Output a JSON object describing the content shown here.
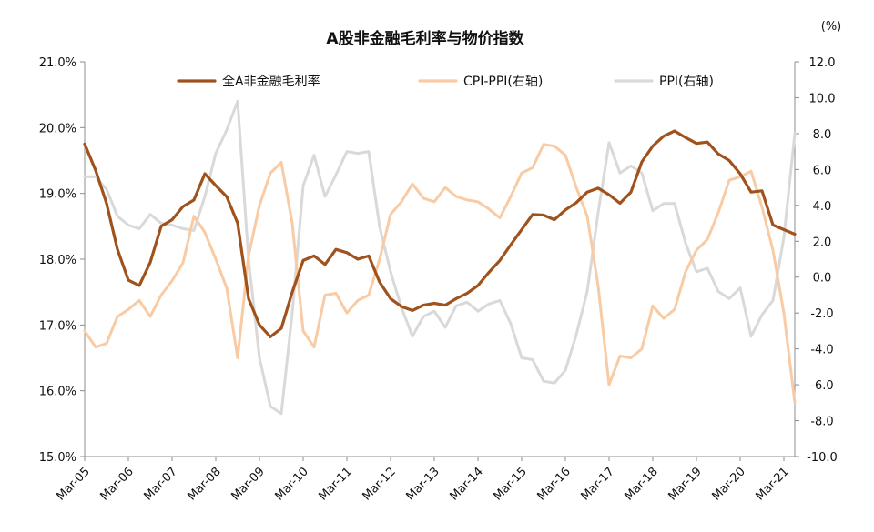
{
  "chart_data": {
    "type": "line",
    "title": "A股非金融毛利率与物价指数",
    "right_unit": "(%)",
    "y_left": {
      "min": 15.0,
      "max": 21.0,
      "step": 1.0,
      "ticks": [
        "15.0%",
        "16.0%",
        "17.0%",
        "18.0%",
        "19.0%",
        "20.0%",
        "21.0%"
      ]
    },
    "y_right": {
      "min": -10.0,
      "max": 12.0,
      "step": 2.0,
      "ticks": [
        "-10.0",
        "-8.0",
        "-6.0",
        "-4.0",
        "-2.0",
        "0.0",
        "2.0",
        "4.0",
        "6.0",
        "8.0",
        "10.0",
        "12.0"
      ]
    },
    "x_range": [
      "2005-03",
      "2021-06"
    ],
    "x_ticks": [
      "Mar-05",
      "Mar-06",
      "Mar-07",
      "Mar-08",
      "Mar-09",
      "Mar-10",
      "Mar-11",
      "Mar-12",
      "Mar-13",
      "Mar-14",
      "Mar-15",
      "Mar-16",
      "Mar-17",
      "Mar-18",
      "Mar-19",
      "Mar-20",
      "Mar-21"
    ],
    "grid": false,
    "legend_position": "top",
    "series": [
      {
        "name": "全A非金融毛利率",
        "axis": "left",
        "color": "#A0521D",
        "points": [
          [
            "2005-03",
            19.75
          ],
          [
            "2005-06",
            19.35
          ],
          [
            "2005-09",
            18.85
          ],
          [
            "2005-12",
            18.15
          ],
          [
            "2006-03",
            17.68
          ],
          [
            "2006-06",
            17.6
          ],
          [
            "2006-09",
            17.95
          ],
          [
            "2006-12",
            18.5
          ],
          [
            "2007-03",
            18.6
          ],
          [
            "2007-06",
            18.8
          ],
          [
            "2007-09",
            18.9
          ],
          [
            "2007-12",
            19.3
          ],
          [
            "2008-03",
            19.12
          ],
          [
            "2008-06",
            18.95
          ],
          [
            "2008-09",
            18.55
          ],
          [
            "2008-12",
            17.4
          ],
          [
            "2009-03",
            17.0
          ],
          [
            "2009-06",
            16.82
          ],
          [
            "2009-09",
            16.95
          ],
          [
            "2009-12",
            17.5
          ],
          [
            "2010-03",
            17.98
          ],
          [
            "2010-06",
            18.05
          ],
          [
            "2010-09",
            17.92
          ],
          [
            "2010-12",
            18.15
          ],
          [
            "2011-03",
            18.1
          ],
          [
            "2011-06",
            18.0
          ],
          [
            "2011-09",
            18.05
          ],
          [
            "2011-12",
            17.65
          ],
          [
            "2012-03",
            17.4
          ],
          [
            "2012-06",
            17.28
          ],
          [
            "2012-09",
            17.22
          ],
          [
            "2012-12",
            17.3
          ],
          [
            "2013-03",
            17.33
          ],
          [
            "2013-06",
            17.3
          ],
          [
            "2013-09",
            17.4
          ],
          [
            "2013-12",
            17.48
          ],
          [
            "2014-03",
            17.6
          ],
          [
            "2014-06",
            17.8
          ],
          [
            "2014-09",
            17.98
          ],
          [
            "2014-12",
            18.22
          ],
          [
            "2015-03",
            18.45
          ],
          [
            "2015-06",
            18.68
          ],
          [
            "2015-09",
            18.67
          ],
          [
            "2015-12",
            18.6
          ],
          [
            "2016-03",
            18.75
          ],
          [
            "2016-06",
            18.86
          ],
          [
            "2016-09",
            19.02
          ],
          [
            "2016-12",
            19.08
          ],
          [
            "2017-03",
            18.98
          ],
          [
            "2017-06",
            18.85
          ],
          [
            "2017-09",
            19.02
          ],
          [
            "2017-12",
            19.48
          ],
          [
            "2018-03",
            19.72
          ],
          [
            "2018-06",
            19.87
          ],
          [
            "2018-09",
            19.95
          ],
          [
            "2018-12",
            19.85
          ],
          [
            "2019-03",
            19.76
          ],
          [
            "2019-06",
            19.78
          ],
          [
            "2019-09",
            19.6
          ],
          [
            "2019-12",
            19.5
          ],
          [
            "2020-03",
            19.3
          ],
          [
            "2020-06",
            19.02
          ],
          [
            "2020-09",
            19.04
          ],
          [
            "2020-12",
            18.52
          ],
          [
            "2021-03",
            18.45
          ],
          [
            "2021-06",
            18.38
          ]
        ]
      },
      {
        "name": "CPI-PPI(右轴)",
        "axis": "right",
        "color": "#F8CBA4",
        "points": [
          [
            "2005-03",
            -3.0
          ],
          [
            "2005-06",
            -3.9
          ],
          [
            "2005-09",
            -3.7
          ],
          [
            "2005-12",
            -2.2
          ],
          [
            "2006-03",
            -1.8
          ],
          [
            "2006-06",
            -1.3
          ],
          [
            "2006-09",
            -2.2
          ],
          [
            "2006-12",
            -1.0
          ],
          [
            "2007-03",
            -0.2
          ],
          [
            "2007-06",
            0.8
          ],
          [
            "2007-09",
            3.4
          ],
          [
            "2007-12",
            2.5
          ],
          [
            "2008-03",
            1.0
          ],
          [
            "2008-06",
            -0.6
          ],
          [
            "2008-09",
            -4.5
          ],
          [
            "2008-12",
            1.2
          ],
          [
            "2009-03",
            4.0
          ],
          [
            "2009-06",
            5.8
          ],
          [
            "2009-09",
            6.4
          ],
          [
            "2009-12",
            3.0
          ],
          [
            "2010-03",
            -3.0
          ],
          [
            "2010-06",
            -3.9
          ],
          [
            "2010-09",
            -1.0
          ],
          [
            "2010-12",
            -0.9
          ],
          [
            "2011-03",
            -2.0
          ],
          [
            "2011-06",
            -1.3
          ],
          [
            "2011-09",
            -1.0
          ],
          [
            "2011-12",
            1.0
          ],
          [
            "2012-03",
            3.5
          ],
          [
            "2012-06",
            4.2
          ],
          [
            "2012-09",
            5.2
          ],
          [
            "2012-12",
            4.4
          ],
          [
            "2013-03",
            4.2
          ],
          [
            "2013-06",
            5.0
          ],
          [
            "2013-09",
            4.5
          ],
          [
            "2013-12",
            4.3
          ],
          [
            "2014-03",
            4.2
          ],
          [
            "2014-06",
            3.8
          ],
          [
            "2014-09",
            3.3
          ],
          [
            "2014-12",
            4.5
          ],
          [
            "2015-03",
            5.8
          ],
          [
            "2015-06",
            6.1
          ],
          [
            "2015-09",
            7.4
          ],
          [
            "2015-12",
            7.3
          ],
          [
            "2016-03",
            6.8
          ],
          [
            "2016-06",
            5.0
          ],
          [
            "2016-09",
            3.4
          ],
          [
            "2016-12",
            -0.5
          ],
          [
            "2017-03",
            -6.0
          ],
          [
            "2017-06",
            -4.4
          ],
          [
            "2017-09",
            -4.5
          ],
          [
            "2017-12",
            -4.0
          ],
          [
            "2018-03",
            -1.6
          ],
          [
            "2018-06",
            -2.3
          ],
          [
            "2018-09",
            -1.8
          ],
          [
            "2018-12",
            0.3
          ],
          [
            "2019-03",
            1.5
          ],
          [
            "2019-06",
            2.1
          ],
          [
            "2019-09",
            3.6
          ],
          [
            "2019-12",
            5.4
          ],
          [
            "2020-03",
            5.6
          ],
          [
            "2020-06",
            5.9
          ],
          [
            "2020-09",
            3.9
          ],
          [
            "2020-12",
            1.5
          ],
          [
            "2021-03",
            -2.0
          ],
          [
            "2021-06",
            -7.0
          ]
        ]
      },
      {
        "name": "PPI(右轴)",
        "axis": "right",
        "color": "#D9D9D9",
        "points": [
          [
            "2005-03",
            5.6
          ],
          [
            "2005-06",
            5.6
          ],
          [
            "2005-09",
            4.9
          ],
          [
            "2005-12",
            3.4
          ],
          [
            "2006-03",
            2.9
          ],
          [
            "2006-06",
            2.7
          ],
          [
            "2006-09",
            3.5
          ],
          [
            "2006-12",
            3.0
          ],
          [
            "2007-03",
            2.9
          ],
          [
            "2007-06",
            2.7
          ],
          [
            "2007-09",
            2.6
          ],
          [
            "2007-12",
            4.5
          ],
          [
            "2008-03",
            6.9
          ],
          [
            "2008-06",
            8.2
          ],
          [
            "2008-09",
            9.8
          ],
          [
            "2008-12",
            1.0
          ],
          [
            "2009-03",
            -4.5
          ],
          [
            "2009-06",
            -7.2
          ],
          [
            "2009-09",
            -7.6
          ],
          [
            "2009-12",
            -2.0
          ],
          [
            "2010-03",
            5.1
          ],
          [
            "2010-06",
            6.8
          ],
          [
            "2010-09",
            4.5
          ],
          [
            "2010-12",
            5.7
          ],
          [
            "2011-03",
            7.0
          ],
          [
            "2011-06",
            6.9
          ],
          [
            "2011-09",
            7.0
          ],
          [
            "2011-12",
            2.8
          ],
          [
            "2012-03",
            0.3
          ],
          [
            "2012-06",
            -1.7
          ],
          [
            "2012-09",
            -3.3
          ],
          [
            "2012-12",
            -2.2
          ],
          [
            "2013-03",
            -1.9
          ],
          [
            "2013-06",
            -2.8
          ],
          [
            "2013-09",
            -1.6
          ],
          [
            "2013-12",
            -1.4
          ],
          [
            "2014-03",
            -1.9
          ],
          [
            "2014-06",
            -1.5
          ],
          [
            "2014-09",
            -1.3
          ],
          [
            "2014-12",
            -2.6
          ],
          [
            "2015-03",
            -4.5
          ],
          [
            "2015-06",
            -4.6
          ],
          [
            "2015-09",
            -5.8
          ],
          [
            "2015-12",
            -5.9
          ],
          [
            "2016-03",
            -5.2
          ],
          [
            "2016-06",
            -3.2
          ],
          [
            "2016-09",
            -0.8
          ],
          [
            "2016-12",
            3.6
          ],
          [
            "2017-03",
            7.5
          ],
          [
            "2017-06",
            5.8
          ],
          [
            "2017-09",
            6.2
          ],
          [
            "2017-12",
            5.8
          ],
          [
            "2018-03",
            3.7
          ],
          [
            "2018-06",
            4.1
          ],
          [
            "2018-09",
            4.1
          ],
          [
            "2018-12",
            1.9
          ],
          [
            "2019-03",
            0.3
          ],
          [
            "2019-06",
            0.5
          ],
          [
            "2019-09",
            -0.8
          ],
          [
            "2019-12",
            -1.2
          ],
          [
            "2020-03",
            -0.6
          ],
          [
            "2020-06",
            -3.3
          ],
          [
            "2020-09",
            -2.1
          ],
          [
            "2020-12",
            -1.3
          ],
          [
            "2021-03",
            2.2
          ],
          [
            "2021-06",
            8.0
          ]
        ]
      }
    ]
  }
}
